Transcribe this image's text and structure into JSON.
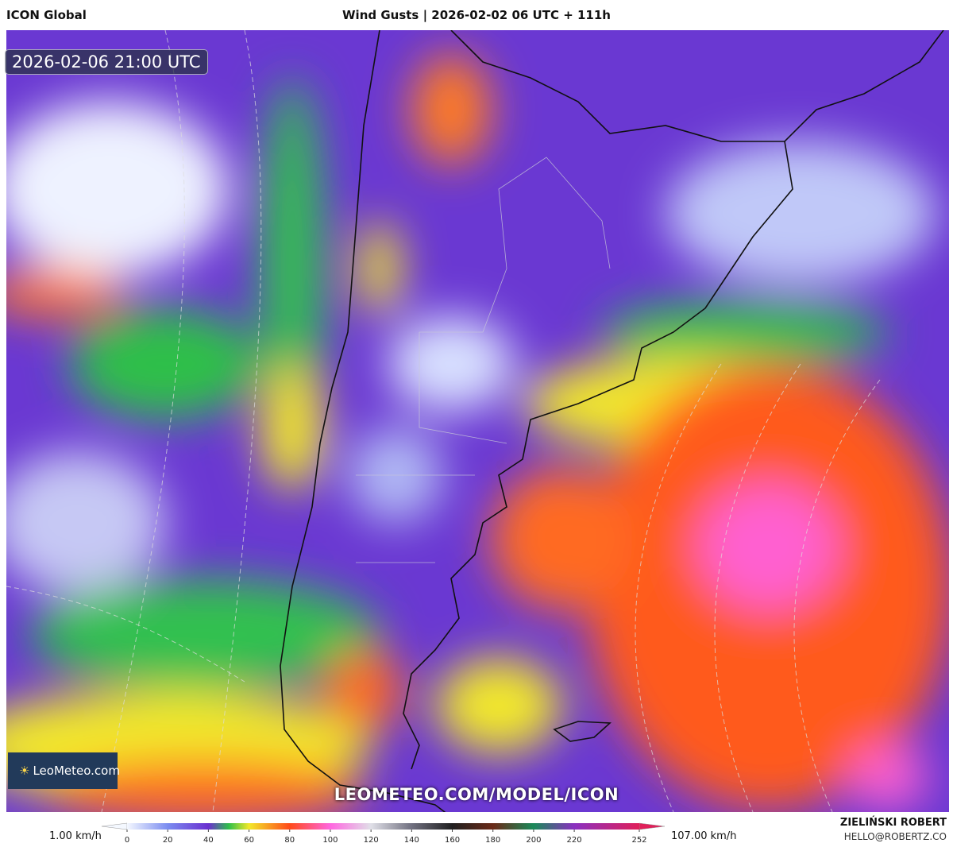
{
  "header": {
    "model": "ICON Global",
    "title": "Wind Gusts | 2026-02-02 06 UTC + 111h"
  },
  "map": {
    "valid_time": "2026-02-06 21:00 UTC",
    "logo": "LeoMeteo.com",
    "watermark": "LEOMETEO.COM/MODEL/ICON"
  },
  "colorbar": {
    "min_label": "1.00 km/h",
    "max_label": "107.00 km/h",
    "ticks": [
      0,
      20,
      40,
      60,
      80,
      100,
      120,
      140,
      160,
      180,
      200,
      220,
      252
    ],
    "stops": [
      {
        "value": 0,
        "color": "#f4f8ff"
      },
      {
        "value": 20,
        "color": "#7b8cf0"
      },
      {
        "value": 40,
        "color": "#6a2fd0"
      },
      {
        "value": 50,
        "color": "#2fbf4a"
      },
      {
        "value": 60,
        "color": "#f2e82a"
      },
      {
        "value": 80,
        "color": "#ff4a1a"
      },
      {
        "value": 100,
        "color": "#ff66e0"
      },
      {
        "value": 120,
        "color": "#e0e0e8"
      },
      {
        "value": 140,
        "color": "#707080"
      },
      {
        "value": 160,
        "color": "#202020"
      },
      {
        "value": 180,
        "color": "#6a2a18"
      },
      {
        "value": 200,
        "color": "#1a8a5a"
      },
      {
        "value": 220,
        "color": "#8a30c0"
      },
      {
        "value": 252,
        "color": "#e0205a"
      }
    ]
  },
  "credits": {
    "author": "ZIELIŃSKI ROBERT",
    "email": "HELLO@ROBERTZ.CO"
  }
}
